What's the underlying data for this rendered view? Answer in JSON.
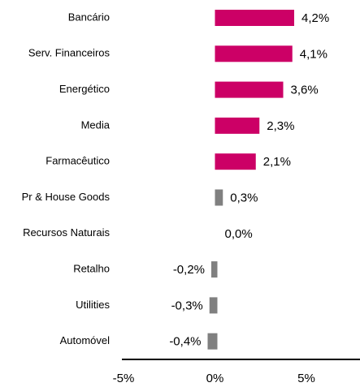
{
  "chart_data": {
    "type": "bar",
    "orientation": "horizontal",
    "categories": [
      "Bancário",
      "Serv. Financeiros",
      "Energético",
      "Media",
      "Farmacêutico",
      "Pr & House Goods",
      "Recursos Naturais",
      "Retalho",
      "Utilities",
      "Automóvel"
    ],
    "values": [
      4.2,
      4.1,
      3.6,
      2.3,
      2.1,
      0.3,
      0.0,
      -0.2,
      -0.3,
      -0.4
    ],
    "value_labels": [
      "4,2%",
      "4,1%",
      "3,6%",
      "2,3%",
      "2,1%",
      "0,3%",
      "0,0%",
      "-0,2%",
      "-0,3%",
      "-0,4%"
    ],
    "colors": [
      "#cc0066",
      "#cc0066",
      "#cc0066",
      "#cc0066",
      "#cc0066",
      "#808080",
      "#808080",
      "#808080",
      "#808080",
      "#808080"
    ],
    "xlim": [
      -5,
      7.8
    ],
    "xticks": [
      {
        "value": -5,
        "label": "-5%"
      },
      {
        "value": 0,
        "label": "0%"
      },
      {
        "value": 5,
        "label": "5%"
      }
    ],
    "grid": false
  }
}
